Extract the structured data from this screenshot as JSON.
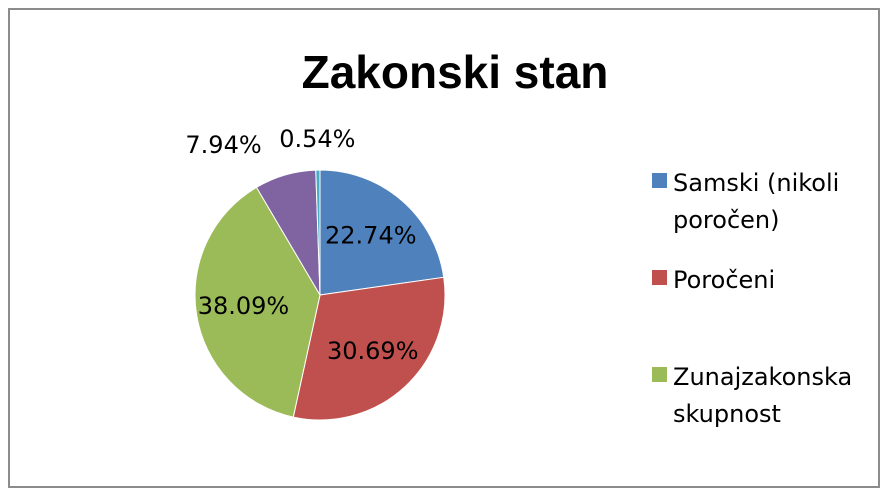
{
  "chart_data": {
    "type": "pie",
    "title": "Zakonski stan",
    "categories": [
      "Samski (nikoli poročen)",
      "Poročeni",
      "Zunajzakonska skupnost",
      null,
      null
    ],
    "values": [
      22.74,
      30.69,
      38.09,
      7.94,
      0.54
    ],
    "value_labels": [
      "22.74%",
      "30.69%",
      "38.09%",
      "7.94%",
      "0.54%"
    ],
    "colors": [
      "#4f81bd",
      "#c0504d",
      "#9bbb59",
      "#8064a2",
      "#4bacc6"
    ],
    "legend": "right"
  }
}
